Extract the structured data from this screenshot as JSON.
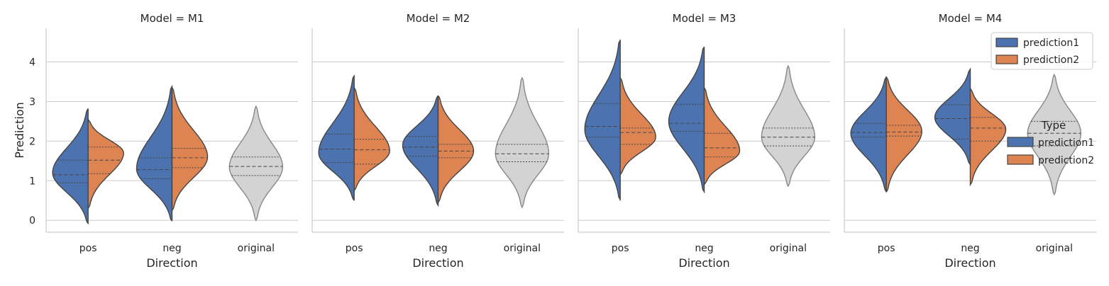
{
  "chart_data": {
    "type": "violin",
    "ylabel": "Prediction",
    "xlabel": "Direction",
    "ylim": [
      -0.3,
      4.85
    ],
    "yticks": [
      0,
      1,
      2,
      3,
      4
    ],
    "categories": [
      "pos",
      "neg",
      "original"
    ],
    "grid": "horizontal",
    "colors": {
      "prediction1": "#4c72b0",
      "prediction2": "#dd8452",
      "original": "#d3d3d3",
      "edge": "#444444",
      "grid": "#cccccc"
    },
    "legend": {
      "title": "Type",
      "location": "right",
      "entries": [
        "prediction1",
        "prediction2"
      ]
    },
    "panels": [
      {
        "title": "Model = M1",
        "violins": [
          {
            "category": "pos",
            "side": "left",
            "series": "prediction1",
            "min": -0.08,
            "max": 2.82,
            "mode": 1.2,
            "q1": 0.95,
            "median": 1.15,
            "q3": 1.52
          },
          {
            "category": "pos",
            "side": "right",
            "series": "prediction2",
            "min": 0.3,
            "max": 2.55,
            "mode": 1.7,
            "q1": 1.18,
            "median": 1.52,
            "q3": 1.85
          },
          {
            "category": "neg",
            "side": "left",
            "series": "prediction1",
            "min": -0.02,
            "max": 3.38,
            "mode": 1.3,
            "q1": 1.05,
            "median": 1.28,
            "q3": 1.58
          },
          {
            "category": "neg",
            "side": "right",
            "series": "prediction2",
            "min": 0.25,
            "max": 3.35,
            "mode": 1.6,
            "q1": 1.33,
            "median": 1.58,
            "q3": 1.82
          },
          {
            "category": "original",
            "side": "both",
            "series": "original",
            "min": 0.0,
            "max": 2.88,
            "mode": 1.35,
            "q1": 1.13,
            "median": 1.36,
            "q3": 1.6
          }
        ]
      },
      {
        "title": "Model = M2",
        "violins": [
          {
            "category": "pos",
            "side": "left",
            "series": "prediction1",
            "min": 0.5,
            "max": 3.65,
            "mode": 1.7,
            "q1": 1.46,
            "median": 1.8,
            "q3": 2.18
          },
          {
            "category": "pos",
            "side": "right",
            "series": "prediction2",
            "min": 0.75,
            "max": 3.35,
            "mode": 1.75,
            "q1": 1.42,
            "median": 1.78,
            "q3": 2.05
          },
          {
            "category": "neg",
            "side": "left",
            "series": "prediction1",
            "min": 0.38,
            "max": 3.15,
            "mode": 1.9,
            "q1": 1.62,
            "median": 1.85,
            "q3": 2.12
          },
          {
            "category": "neg",
            "side": "right",
            "series": "prediction2",
            "min": 0.45,
            "max": 3.15,
            "mode": 1.75,
            "q1": 1.58,
            "median": 1.75,
            "q3": 1.92
          },
          {
            "category": "original",
            "side": "both",
            "series": "original",
            "min": 0.33,
            "max": 3.6,
            "mode": 1.68,
            "q1": 1.48,
            "median": 1.68,
            "q3": 1.92
          }
        ]
      },
      {
        "title": "Model = M3",
        "violins": [
          {
            "category": "pos",
            "side": "left",
            "series": "prediction1",
            "min": 0.52,
            "max": 4.55,
            "mode": 2.3,
            "q1": 2.1,
            "median": 2.37,
            "q3": 2.95
          },
          {
            "category": "pos",
            "side": "right",
            "series": "prediction2",
            "min": 1.15,
            "max": 3.6,
            "mode": 2.1,
            "q1": 1.92,
            "median": 2.22,
            "q3": 2.33
          },
          {
            "category": "neg",
            "side": "left",
            "series": "prediction1",
            "min": 0.72,
            "max": 4.38,
            "mode": 2.5,
            "q1": 2.25,
            "median": 2.45,
            "q3": 2.93
          },
          {
            "category": "neg",
            "side": "right",
            "series": "prediction2",
            "min": 0.9,
            "max": 3.35,
            "mode": 1.75,
            "q1": 1.6,
            "median": 1.83,
            "q3": 2.2
          },
          {
            "category": "original",
            "side": "both",
            "series": "original",
            "min": 0.86,
            "max": 3.9,
            "mode": 2.1,
            "q1": 1.88,
            "median": 2.1,
            "q3": 2.33
          }
        ]
      },
      {
        "title": "Model = M4",
        "violins": [
          {
            "category": "pos",
            "side": "left",
            "series": "prediction1",
            "min": 0.72,
            "max": 3.62,
            "mode": 2.2,
            "q1": 2.1,
            "median": 2.22,
            "q3": 2.45
          },
          {
            "category": "pos",
            "side": "right",
            "series": "prediction2",
            "min": 0.72,
            "max": 3.62,
            "mode": 2.25,
            "q1": 2.13,
            "median": 2.23,
            "q3": 2.4
          },
          {
            "category": "neg",
            "side": "left",
            "series": "prediction1",
            "min": 1.4,
            "max": 3.82,
            "mode": 2.6,
            "q1": 2.05,
            "median": 2.57,
            "q3": 2.92
          },
          {
            "category": "neg",
            "side": "right",
            "series": "prediction2",
            "min": 0.9,
            "max": 3.33,
            "mode": 2.3,
            "q1": 2.0,
            "median": 2.33,
            "q3": 2.6
          },
          {
            "category": "original",
            "side": "both",
            "series": "original",
            "min": 0.65,
            "max": 3.68,
            "mode": 2.2,
            "q1": 1.88,
            "median": 2.2,
            "q3": 2.5
          }
        ]
      }
    ]
  }
}
